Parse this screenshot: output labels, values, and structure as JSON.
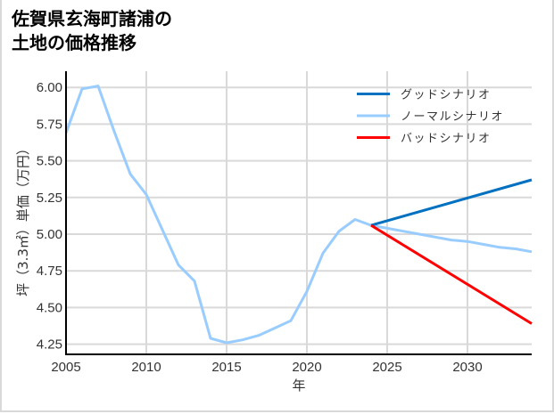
{
  "title_line1": "佐賀県玄海町諸浦の",
  "title_line2": "土地の価格推移",
  "chart_data": {
    "type": "line",
    "title": "佐賀県玄海町諸浦の土地の価格推移",
    "xlabel": "年",
    "ylabel": "坪（3.3㎡）単価（万円）",
    "xlim": [
      2005,
      2034
    ],
    "ylim": [
      4.18,
      6.08
    ],
    "xticks": [
      2005,
      2010,
      2015,
      2020,
      2025,
      2030
    ],
    "xtick_labels": [
      "2005",
      "2010",
      "2015",
      "2020",
      "2025",
      "2030"
    ],
    "yticks": [
      4.25,
      4.5,
      4.75,
      5.0,
      5.25,
      5.5,
      5.75,
      6.0
    ],
    "ytick_labels": [
      "4.25",
      "4.50",
      "4.75",
      "5.00",
      "5.25",
      "5.50",
      "5.75",
      "6.00"
    ],
    "grid": true,
    "legend_position": "upper right",
    "series": [
      {
        "name": "グッドシナリオ",
        "color": "#0070c0",
        "x": [
          2024,
          2034
        ],
        "values": [
          5.06,
          5.37
        ]
      },
      {
        "name": "ノーマルシナリオ",
        "color": "#99ccff",
        "x": [
          2005,
          2006,
          2007,
          2008,
          2009,
          2010,
          2011,
          2012,
          2013,
          2014,
          2015,
          2016,
          2017,
          2018,
          2019,
          2020,
          2021,
          2022,
          2023,
          2024,
          2025,
          2026,
          2027,
          2028,
          2029,
          2030,
          2031,
          2032,
          2033,
          2034
        ],
        "values": [
          5.69,
          5.99,
          6.01,
          5.7,
          5.41,
          5.27,
          5.03,
          4.79,
          4.68,
          4.29,
          4.26,
          4.28,
          4.31,
          4.36,
          4.41,
          4.61,
          4.87,
          5.02,
          5.1,
          5.06,
          5.04,
          5.02,
          5.0,
          4.98,
          4.96,
          4.95,
          4.93,
          4.91,
          4.9,
          4.88
        ]
      },
      {
        "name": "バッドシナリオ",
        "color": "#ff0000",
        "x": [
          2024,
          2034
        ],
        "values": [
          5.06,
          4.39
        ]
      }
    ]
  }
}
